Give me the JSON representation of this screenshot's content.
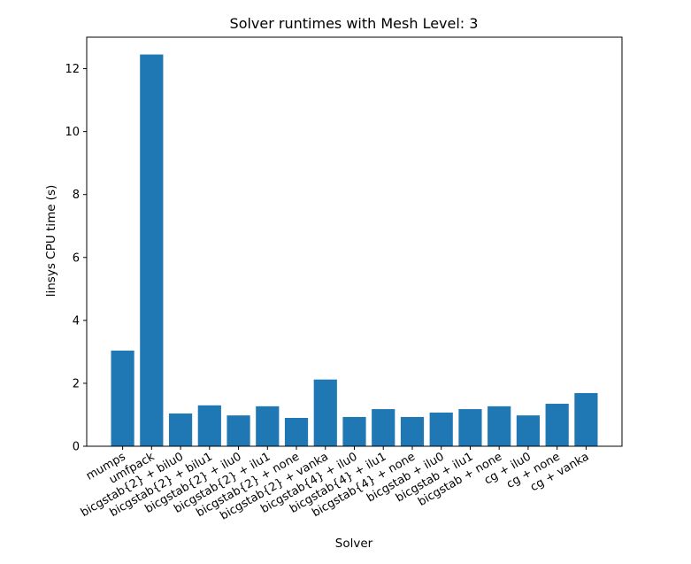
{
  "chart_data": {
    "type": "bar",
    "title": "Solver runtimes with Mesh Level: 3",
    "xlabel": "Solver",
    "ylabel": "linsys CPU time (s)",
    "ylim": [
      0,
      13
    ],
    "yticks": [
      0,
      2,
      4,
      6,
      8,
      10,
      12
    ],
    "grid": false,
    "bar_color": "#1f77b4",
    "categories": [
      "mumps",
      "umfpack",
      "bicgstab{2} + bilu0",
      "bicgstab{2} + bilu1",
      "bicgstab{2} + ilu0",
      "bicgstab{2} + ilu1",
      "bicgstab{2} + none",
      "bicgstab{2} + vanka",
      "bicgstab{4} + ilu0",
      "bicgstab{4} + ilu1",
      "bicgstab{4} + none",
      "bicgstab + ilu0",
      "bicgstab + ilu1",
      "bicgstab + none",
      "cg + ilu0",
      "cg + none",
      "cg + vanka"
    ],
    "values": [
      3.04,
      12.45,
      1.04,
      1.3,
      0.98,
      1.27,
      0.9,
      2.12,
      0.93,
      1.18,
      0.93,
      1.07,
      1.18,
      1.27,
      0.98,
      1.35,
      1.69
    ]
  }
}
